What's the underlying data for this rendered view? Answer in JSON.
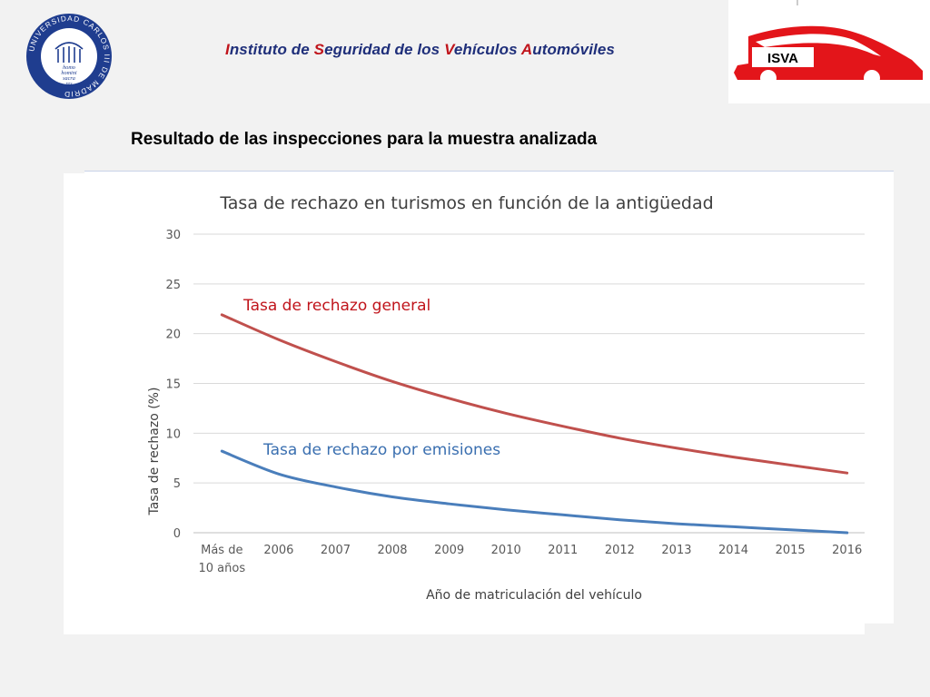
{
  "header": {
    "title_parts": [
      {
        "text": "I",
        "cap": true
      },
      {
        "text": "nstituto de ",
        "cap": false
      },
      {
        "text": "S",
        "cap": true
      },
      {
        "text": "eguridad de los ",
        "cap": false
      },
      {
        "text": "V",
        "cap": true
      },
      {
        "text": "ehículos ",
        "cap": false
      },
      {
        "text": "A",
        "cap": true
      },
      {
        "text": "utomóviles",
        "cap": false
      }
    ],
    "logo_left": {
      "icon": "university-seal-icon",
      "ring_text": "UNIVERSIDAD CARLOS III DE MADRID",
      "inner_text": [
        "homo",
        "homini",
        "sacra",
        "res"
      ]
    },
    "logo_right": {
      "icon": "isva-car-logo-icon",
      "text": "ISVA"
    }
  },
  "slide": {
    "heading": "Resultado de las inspecciones para la muestra analizada"
  },
  "chart_data": {
    "type": "line",
    "title": "Tasa de rechazo en turismos en función de la antigüedad",
    "xlabel": "Año de matriculación del vehículo",
    "ylabel": "Tasa de rechazo (%)",
    "categories": [
      "Más de 10 años",
      "2006",
      "2007",
      "2008",
      "2009",
      "2010",
      "2011",
      "2012",
      "2013",
      "2014",
      "2015",
      "2016"
    ],
    "category_lines": [
      [
        "Más de",
        "10 años"
      ],
      [
        "2006"
      ],
      [
        "2007"
      ],
      [
        "2008"
      ],
      [
        "2009"
      ],
      [
        "2010"
      ],
      [
        "2011"
      ],
      [
        "2012"
      ],
      [
        "2013"
      ],
      [
        "2014"
      ],
      [
        "2015"
      ],
      [
        "2016"
      ]
    ],
    "ylim": [
      0,
      30
    ],
    "yticks": [
      0,
      5,
      10,
      15,
      20,
      25,
      30
    ],
    "grid": true,
    "series": [
      {
        "name": "Tasa de rechazo general",
        "color": "#c0504d",
        "values": [
          21.9,
          19.4,
          17.2,
          15.2,
          13.5,
          12.0,
          10.7,
          9.5,
          8.5,
          7.6,
          6.8,
          6.0
        ]
      },
      {
        "name": "Tasa de rechazo por emisiones",
        "color": "#4a7ebb",
        "values": [
          8.2,
          5.9,
          4.6,
          3.6,
          2.9,
          2.3,
          1.8,
          1.3,
          0.9,
          0.6,
          0.3,
          0.0
        ]
      }
    ],
    "label_colors": {
      "general": "#c0141b",
      "emisiones": "#3a6fb0"
    }
  }
}
